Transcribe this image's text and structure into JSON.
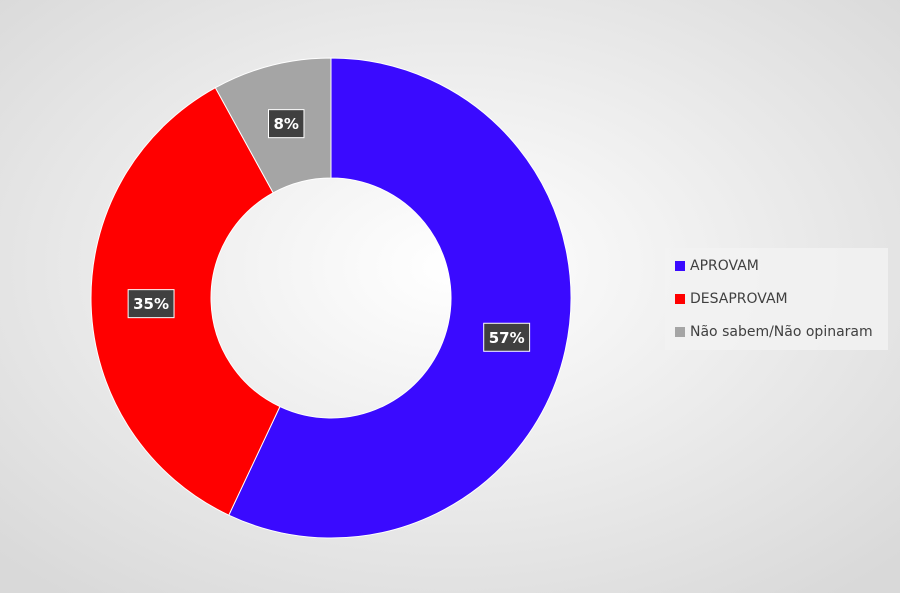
{
  "chart_data": {
    "type": "donut",
    "categories": [
      "APROVAM",
      "DESAPROVAM",
      "Não sabem/Não opinaram"
    ],
    "values": [
      57,
      35,
      8
    ],
    "value_labels": [
      "57%",
      "35%",
      "8%"
    ],
    "colors": [
      "#3a0aff",
      "#ff0000",
      "#a5a5a5"
    ],
    "legend": "right"
  }
}
